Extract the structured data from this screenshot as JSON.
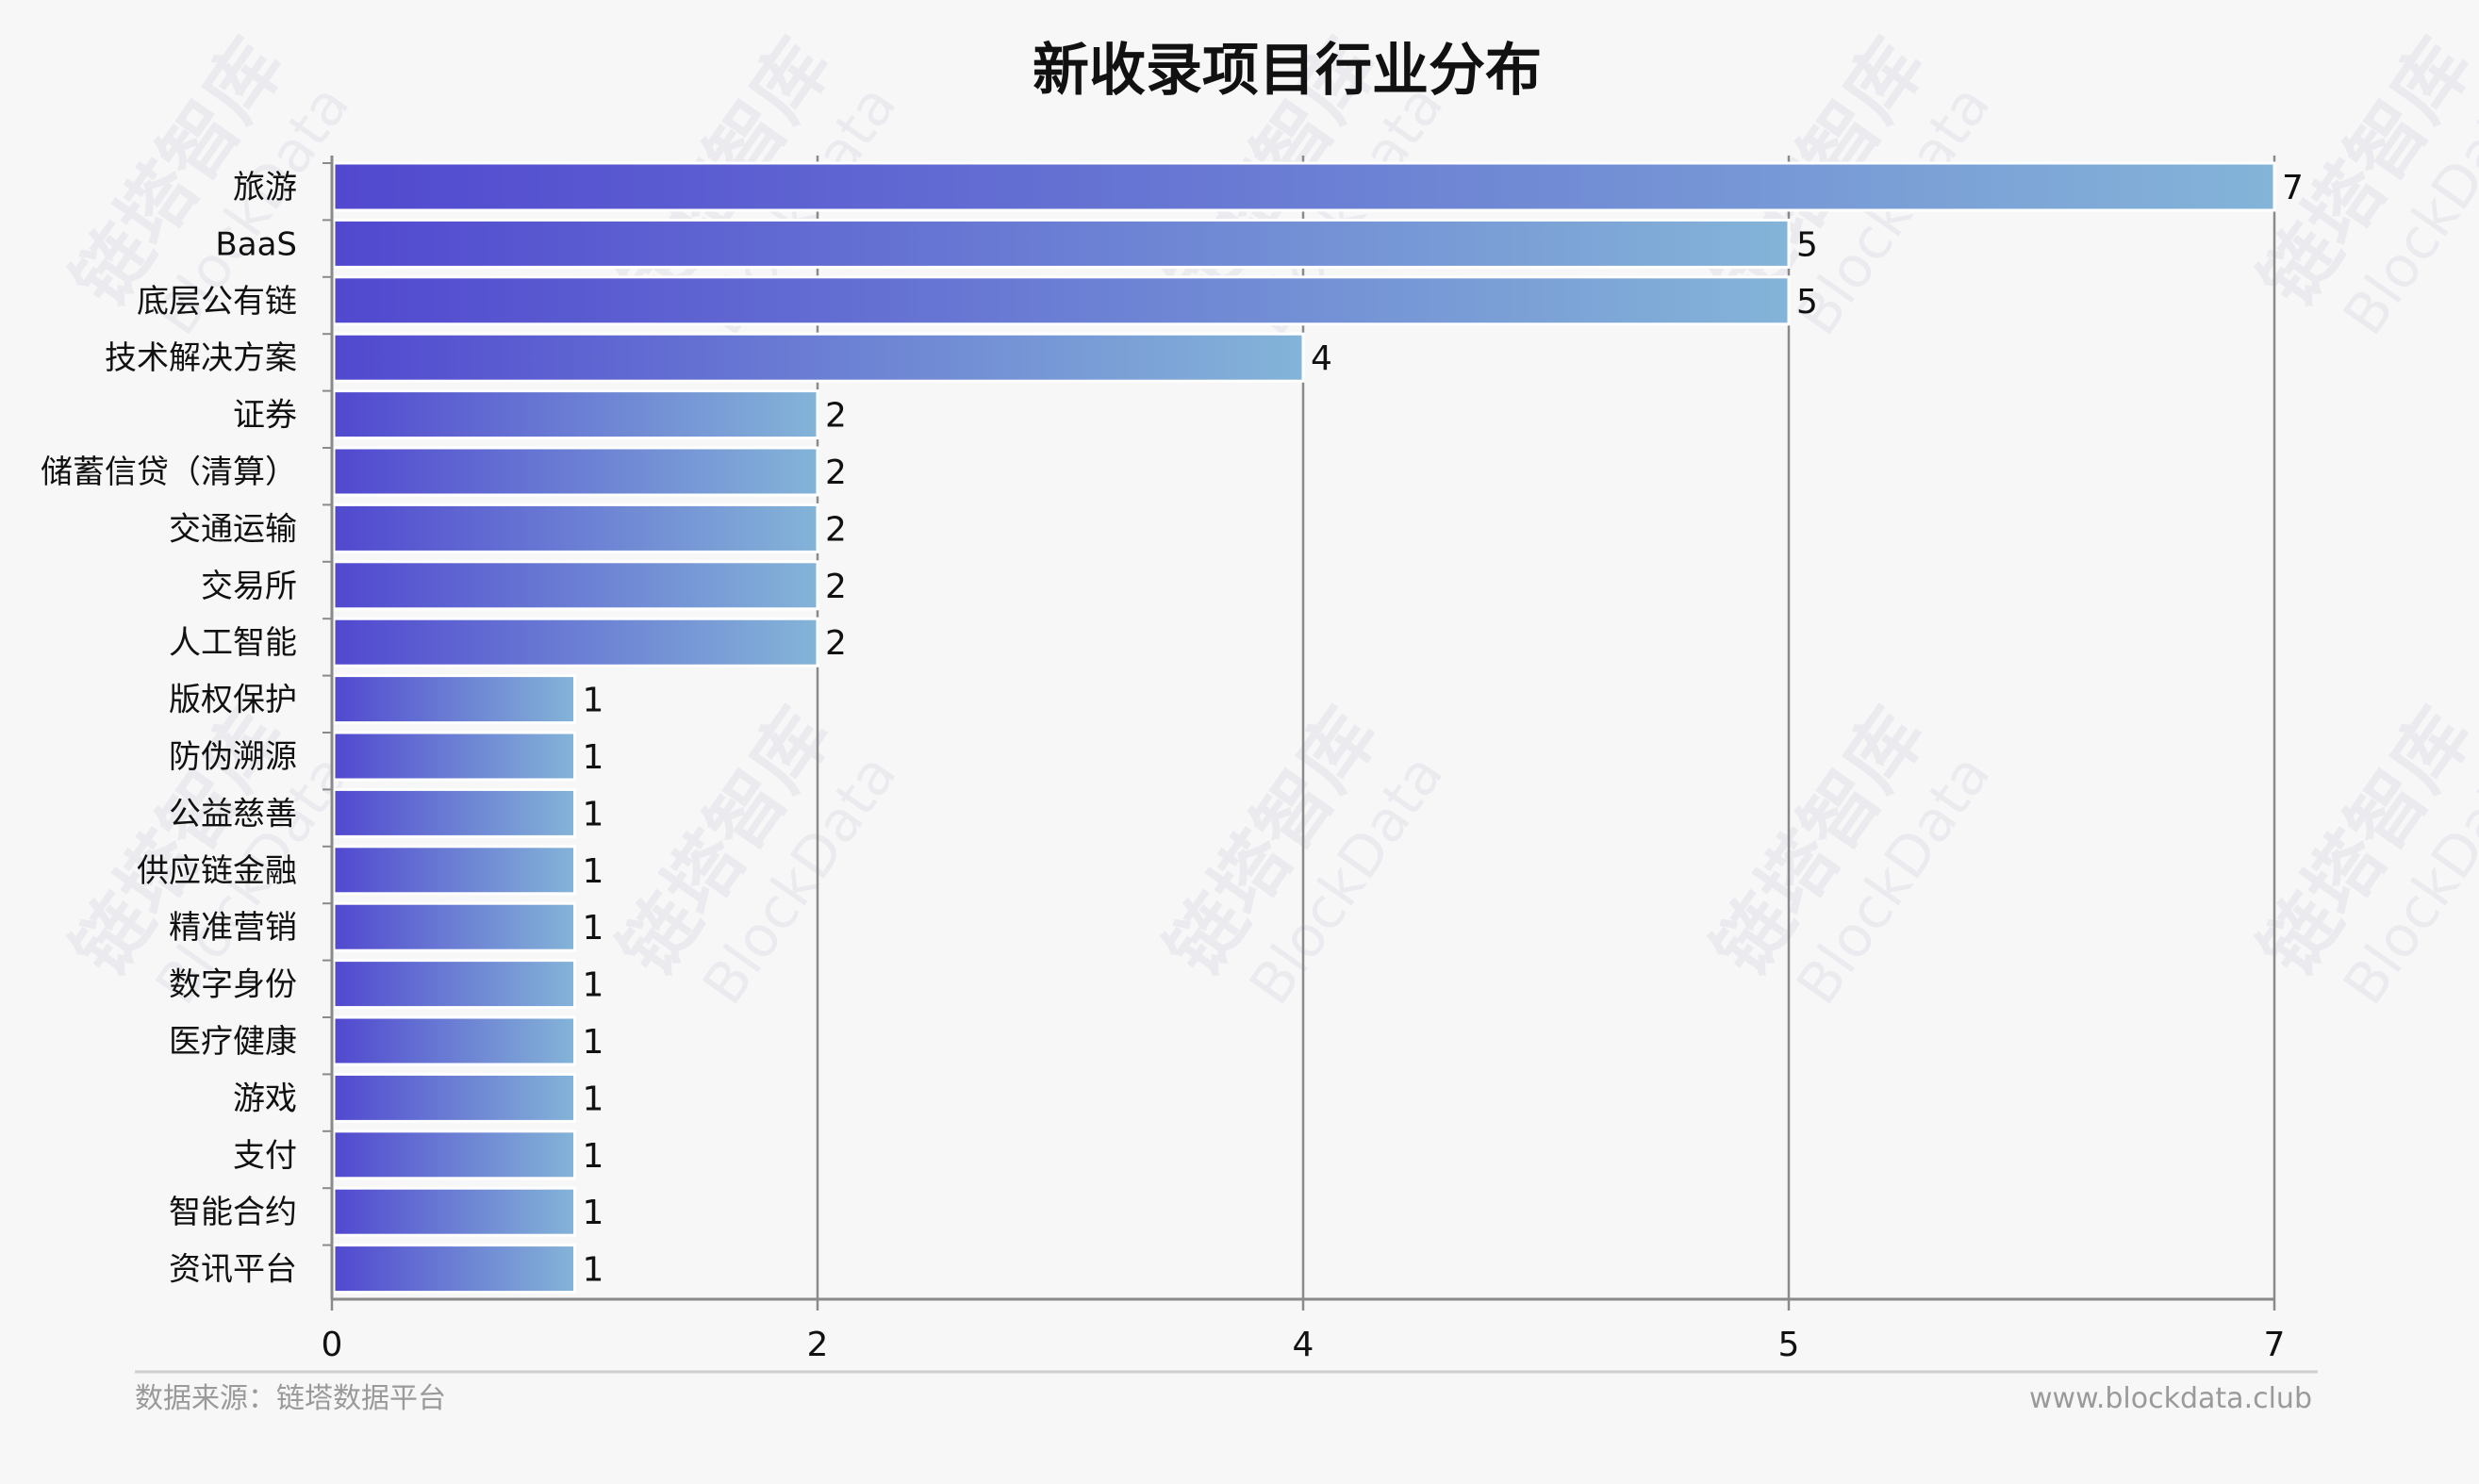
{
  "chart_data": {
    "type": "bar",
    "orientation": "horizontal",
    "title": "新收录项目行业分布",
    "categories": [
      "旅游",
      "BaaS",
      "底层公有链",
      "技术解决方案",
      "证券",
      "储蓄信贷（清算）",
      "交通运输",
      "交易所",
      "人工智能",
      "版权保护",
      "防伪溯源",
      "公益慈善",
      "供应链金融",
      "精准营销",
      "数字身份",
      "医疗健康",
      "游戏",
      "支付",
      "智能合约",
      "资讯平台"
    ],
    "values": [
      7,
      5,
      5,
      4,
      2,
      2,
      2,
      2,
      2,
      1,
      1,
      1,
      1,
      1,
      1,
      1,
      1,
      1,
      1,
      1
    ],
    "x_ticks": [
      "0",
      "2",
      "4",
      "5",
      "7"
    ],
    "grid": true,
    "colors": {
      "bar_start": "#5148cf",
      "bar_end": "#84b4d8"
    }
  },
  "footer": {
    "source": "数据来源：链塔数据平台",
    "website": "www.blockdata.club"
  },
  "watermark": {
    "text": "链塔智库",
    "subtext": "BlockData"
  }
}
